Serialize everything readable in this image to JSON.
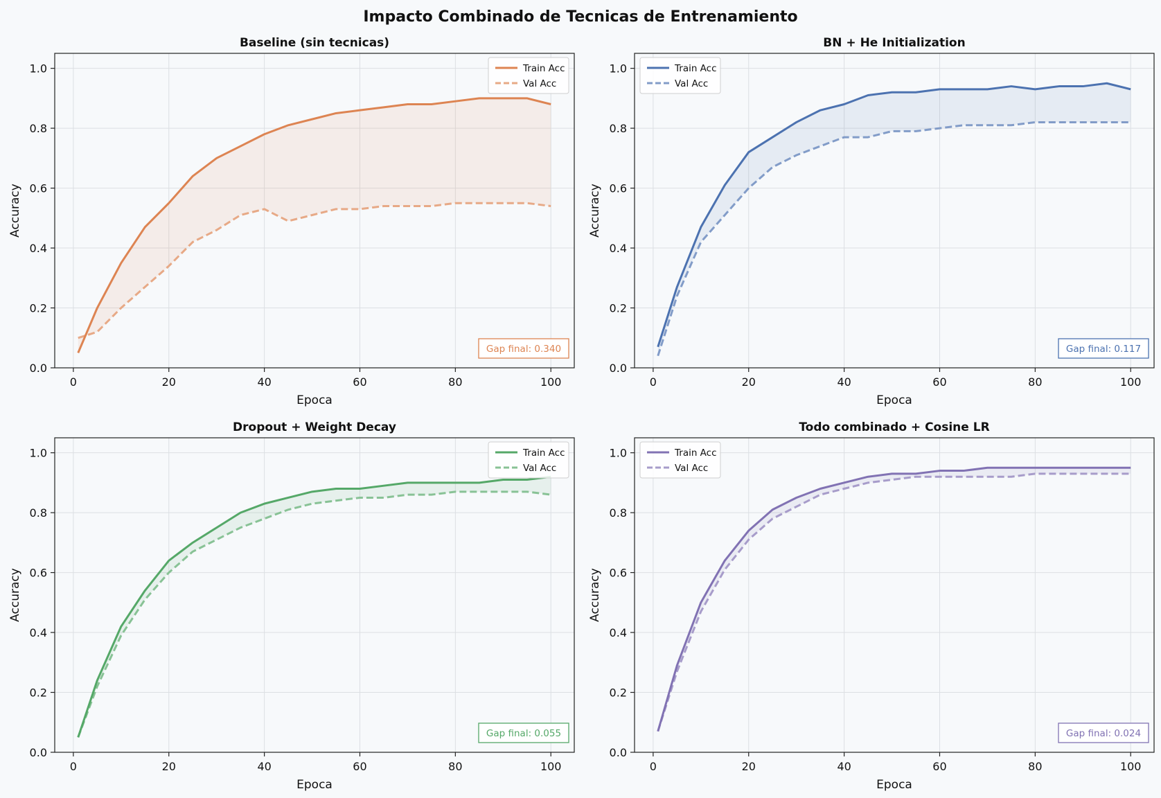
{
  "figure_title": "Impacto Combinado de Tecnicas de Entrenamiento",
  "chart_data": [
    {
      "type": "line",
      "title": "Baseline (sin tecnicas)",
      "xlabel": "Epoca",
      "ylabel": "Accuracy",
      "xlim": [
        -3.9,
        104.9
      ],
      "ylim": [
        0,
        1.05
      ],
      "xticks": [
        0,
        20,
        40,
        60,
        80,
        100
      ],
      "yticks": [
        0.0,
        0.2,
        0.4,
        0.6,
        0.8,
        1.0
      ],
      "grid": true,
      "legend_position": "top-right",
      "color": "#dd8452",
      "annotation": "Gap final: 0.340",
      "x": [
        1,
        5,
        10,
        15,
        20,
        25,
        30,
        35,
        40,
        45,
        50,
        55,
        60,
        65,
        70,
        75,
        80,
        85,
        90,
        95,
        100
      ],
      "series": [
        {
          "name": "Train Acc",
          "style": "solid",
          "values": [
            0.05,
            0.2,
            0.35,
            0.47,
            0.55,
            0.64,
            0.7,
            0.74,
            0.78,
            0.81,
            0.83,
            0.85,
            0.86,
            0.87,
            0.88,
            0.88,
            0.89,
            0.9,
            0.9,
            0.9,
            0.88
          ]
        },
        {
          "name": "Val Acc",
          "style": "dashed",
          "values": [
            0.1,
            0.12,
            0.2,
            0.27,
            0.34,
            0.42,
            0.46,
            0.51,
            0.53,
            0.49,
            0.51,
            0.53,
            0.53,
            0.54,
            0.54,
            0.54,
            0.55,
            0.55,
            0.55,
            0.55,
            0.54
          ]
        }
      ]
    },
    {
      "type": "line",
      "title": "BN + He Initialization",
      "xlabel": "Epoca",
      "ylabel": "Accuracy",
      "xlim": [
        -3.9,
        104.9
      ],
      "ylim": [
        0,
        1.05
      ],
      "xticks": [
        0,
        20,
        40,
        60,
        80,
        100
      ],
      "yticks": [
        0.0,
        0.2,
        0.4,
        0.6,
        0.8,
        1.0
      ],
      "grid": true,
      "legend_position": "top-left",
      "color": "#4c72b0",
      "annotation": "Gap final: 0.117",
      "x": [
        1,
        5,
        10,
        15,
        20,
        25,
        30,
        35,
        40,
        45,
        50,
        55,
        60,
        65,
        70,
        75,
        80,
        85,
        90,
        95,
        100
      ],
      "series": [
        {
          "name": "Train Acc",
          "style": "solid",
          "values": [
            0.07,
            0.27,
            0.47,
            0.61,
            0.72,
            0.77,
            0.82,
            0.86,
            0.88,
            0.91,
            0.92,
            0.92,
            0.93,
            0.93,
            0.93,
            0.94,
            0.93,
            0.94,
            0.94,
            0.95,
            0.93
          ]
        },
        {
          "name": "Val Acc",
          "style": "dashed",
          "values": [
            0.04,
            0.24,
            0.42,
            0.51,
            0.6,
            0.67,
            0.71,
            0.74,
            0.77,
            0.77,
            0.79,
            0.79,
            0.8,
            0.81,
            0.81,
            0.81,
            0.82,
            0.82,
            0.82,
            0.82,
            0.82
          ]
        }
      ]
    },
    {
      "type": "line",
      "title": "Dropout + Weight Decay",
      "xlabel": "Epoca",
      "ylabel": "Accuracy",
      "xlim": [
        -3.9,
        104.9
      ],
      "ylim": [
        0,
        1.05
      ],
      "xticks": [
        0,
        20,
        40,
        60,
        80,
        100
      ],
      "yticks": [
        0.0,
        0.2,
        0.4,
        0.6,
        0.8,
        1.0
      ],
      "grid": true,
      "legend_position": "top-right",
      "color": "#55a868",
      "annotation": "Gap final: 0.055",
      "x": [
        1,
        5,
        10,
        15,
        20,
        25,
        30,
        35,
        40,
        45,
        50,
        55,
        60,
        65,
        70,
        75,
        80,
        85,
        90,
        95,
        100
      ],
      "series": [
        {
          "name": "Train Acc",
          "style": "solid",
          "values": [
            0.05,
            0.24,
            0.42,
            0.54,
            0.64,
            0.7,
            0.75,
            0.8,
            0.83,
            0.85,
            0.87,
            0.88,
            0.88,
            0.89,
            0.9,
            0.9,
            0.9,
            0.9,
            0.91,
            0.91,
            0.92
          ]
        },
        {
          "name": "Val Acc",
          "style": "dashed",
          "values": [
            0.05,
            0.22,
            0.39,
            0.51,
            0.6,
            0.67,
            0.71,
            0.75,
            0.78,
            0.81,
            0.83,
            0.84,
            0.85,
            0.85,
            0.86,
            0.86,
            0.87,
            0.87,
            0.87,
            0.87,
            0.86
          ]
        }
      ]
    },
    {
      "type": "line",
      "title": "Todo combinado + Cosine LR",
      "xlabel": "Epoca",
      "ylabel": "Accuracy",
      "xlim": [
        -3.9,
        104.9
      ],
      "ylim": [
        0,
        1.05
      ],
      "xticks": [
        0,
        20,
        40,
        60,
        80,
        100
      ],
      "yticks": [
        0.0,
        0.2,
        0.4,
        0.6,
        0.8,
        1.0
      ],
      "grid": true,
      "legend_position": "top-left",
      "color": "#8172b3",
      "annotation": "Gap final: 0.024",
      "x": [
        1,
        5,
        10,
        15,
        20,
        25,
        30,
        35,
        40,
        45,
        50,
        55,
        60,
        65,
        70,
        75,
        80,
        85,
        90,
        95,
        100
      ],
      "series": [
        {
          "name": "Train Acc",
          "style": "solid",
          "values": [
            0.07,
            0.29,
            0.5,
            0.64,
            0.74,
            0.81,
            0.85,
            0.88,
            0.9,
            0.92,
            0.93,
            0.93,
            0.94,
            0.94,
            0.95,
            0.95,
            0.95,
            0.95,
            0.95,
            0.95,
            0.95
          ]
        },
        {
          "name": "Val Acc",
          "style": "dashed",
          "values": [
            0.07,
            0.27,
            0.47,
            0.61,
            0.71,
            0.78,
            0.82,
            0.86,
            0.88,
            0.9,
            0.91,
            0.92,
            0.92,
            0.92,
            0.92,
            0.92,
            0.93,
            0.93,
            0.93,
            0.93,
            0.93
          ]
        }
      ]
    }
  ]
}
